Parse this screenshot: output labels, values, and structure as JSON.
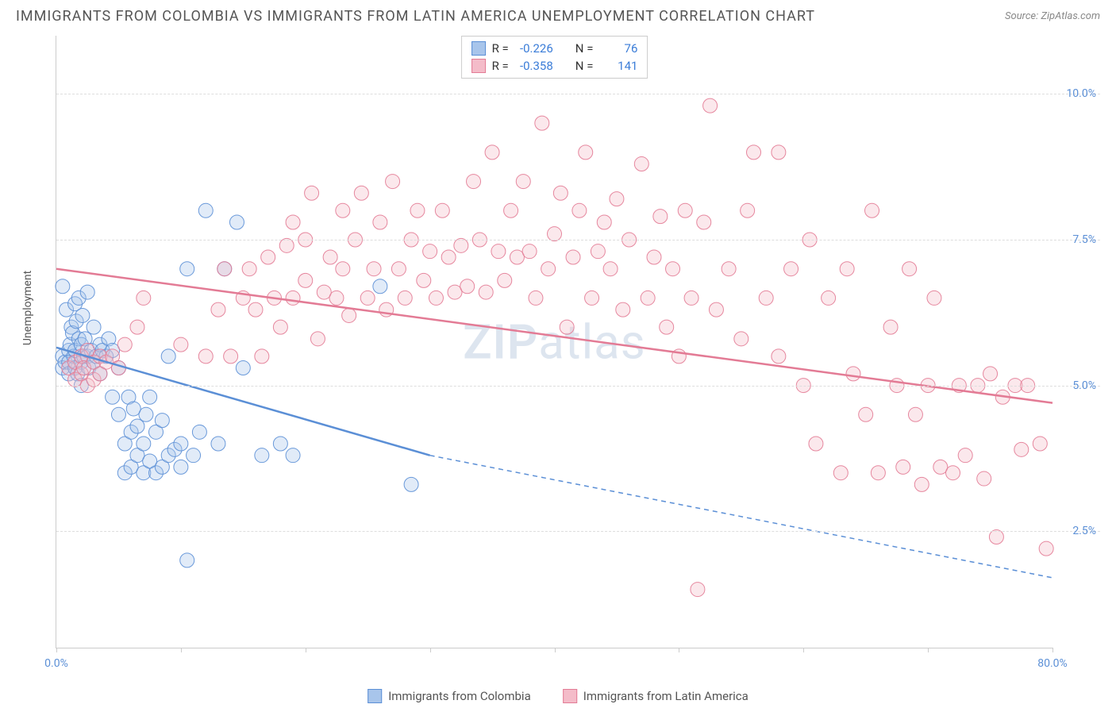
{
  "header": {
    "title": "IMMIGRANTS FROM COLOMBIA VS IMMIGRANTS FROM LATIN AMERICA UNEMPLOYMENT CORRELATION CHART",
    "source_prefix": "Source: ",
    "source_name": "ZipAtlas.com"
  },
  "chart": {
    "type": "scatter",
    "xlim": [
      0,
      80
    ],
    "ylim": [
      0.5,
      11
    ],
    "x_ticks": [
      0,
      10,
      20,
      30,
      40,
      50,
      60,
      70,
      80
    ],
    "x_tick_labels": {
      "0": "0.0%",
      "80": "80.0%"
    },
    "y_ticks": [
      2.5,
      5.0,
      7.5,
      10.0
    ],
    "y_tick_labels": [
      "2.5%",
      "5.0%",
      "7.5%",
      "10.0%"
    ],
    "y_axis_label": "Unemployment",
    "background_color": "#ffffff",
    "grid_color": "#dddddd",
    "axis_color": "#cccccc",
    "tick_label_color": "#5b8fd6",
    "marker_radius": 9,
    "marker_fill_opacity": 0.35,
    "marker_stroke_opacity": 0.9,
    "line_width": 2.5,
    "watermark": "ZIPatlas",
    "series": [
      {
        "name": "Immigrants from Colombia",
        "color": "#5b8fd6",
        "fill": "#a8c5eb",
        "R": "-0.226",
        "N": "76",
        "trend": {
          "x1": 0,
          "y1": 5.65,
          "x2": 30,
          "y2": 3.8,
          "x2_ext": 80,
          "y2_ext": 1.7
        },
        "points": [
          [
            0.5,
            6.7
          ],
          [
            0.5,
            5.5
          ],
          [
            0.5,
            5.3
          ],
          [
            0.7,
            5.4
          ],
          [
            0.8,
            6.3
          ],
          [
            1.0,
            5.6
          ],
          [
            1.0,
            5.4
          ],
          [
            1.0,
            5.2
          ],
          [
            1.1,
            5.7
          ],
          [
            1.2,
            6.0
          ],
          [
            1.3,
            5.9
          ],
          [
            1.4,
            5.5
          ],
          [
            1.5,
            6.4
          ],
          [
            1.5,
            5.3
          ],
          [
            1.5,
            5.6
          ],
          [
            1.6,
            6.1
          ],
          [
            1.7,
            5.2
          ],
          [
            1.8,
            5.8
          ],
          [
            1.8,
            6.5
          ],
          [
            2.0,
            5.4
          ],
          [
            2.0,
            5.0
          ],
          [
            2.0,
            5.7
          ],
          [
            2.1,
            6.2
          ],
          [
            2.2,
            5.5
          ],
          [
            2.3,
            5.8
          ],
          [
            2.5,
            5.5
          ],
          [
            2.5,
            6.6
          ],
          [
            2.6,
            5.3
          ],
          [
            2.8,
            5.6
          ],
          [
            3.0,
            5.4
          ],
          [
            3.0,
            6.0
          ],
          [
            3.2,
            5.5
          ],
          [
            3.5,
            5.7
          ],
          [
            3.5,
            5.2
          ],
          [
            3.7,
            5.6
          ],
          [
            4.0,
            5.5
          ],
          [
            4.2,
            5.8
          ],
          [
            4.5,
            4.8
          ],
          [
            4.5,
            5.6
          ],
          [
            5.0,
            5.3
          ],
          [
            5.0,
            4.5
          ],
          [
            5.5,
            4.0
          ],
          [
            5.5,
            3.5
          ],
          [
            5.8,
            4.8
          ],
          [
            6.0,
            4.2
          ],
          [
            6.0,
            3.6
          ],
          [
            6.2,
            4.6
          ],
          [
            6.5,
            3.8
          ],
          [
            6.5,
            4.3
          ],
          [
            7.0,
            4.0
          ],
          [
            7.0,
            3.5
          ],
          [
            7.2,
            4.5
          ],
          [
            7.5,
            3.7
          ],
          [
            7.5,
            4.8
          ],
          [
            8.0,
            3.5
          ],
          [
            8.0,
            4.2
          ],
          [
            8.5,
            3.6
          ],
          [
            8.5,
            4.4
          ],
          [
            9.0,
            3.8
          ],
          [
            9.0,
            5.5
          ],
          [
            9.5,
            3.9
          ],
          [
            10.0,
            4.0
          ],
          [
            10.0,
            3.6
          ],
          [
            10.5,
            7.0
          ],
          [
            11.0,
            3.8
          ],
          [
            11.5,
            4.2
          ],
          [
            12.0,
            8.0
          ],
          [
            13.0,
            4.0
          ],
          [
            13.5,
            7.0
          ],
          [
            14.5,
            7.8
          ],
          [
            15.0,
            5.3
          ],
          [
            16.5,
            3.8
          ],
          [
            18.0,
            4.0
          ],
          [
            19.0,
            3.8
          ],
          [
            26.0,
            6.7
          ],
          [
            28.5,
            3.3
          ],
          [
            10.5,
            2.0
          ]
        ]
      },
      {
        "name": "Immigrants from Latin America",
        "color": "#e37b95",
        "fill": "#f4bcc9",
        "R": "-0.358",
        "N": "141",
        "trend": {
          "x1": 0,
          "y1": 7.0,
          "x2": 80,
          "y2": 4.7,
          "x2_ext": 80,
          "y2_ext": 4.7
        },
        "points": [
          [
            1.0,
            5.3
          ],
          [
            1.5,
            5.4
          ],
          [
            1.5,
            5.1
          ],
          [
            2.0,
            5.5
          ],
          [
            2.0,
            5.2
          ],
          [
            2.2,
            5.3
          ],
          [
            2.5,
            5.6
          ],
          [
            2.5,
            5.0
          ],
          [
            3.0,
            5.4
          ],
          [
            3.0,
            5.1
          ],
          [
            3.5,
            5.5
          ],
          [
            3.5,
            5.2
          ],
          [
            4.0,
            5.4
          ],
          [
            4.5,
            5.5
          ],
          [
            5.0,
            5.3
          ],
          [
            5.5,
            5.7
          ],
          [
            6.5,
            6.0
          ],
          [
            7.0,
            6.5
          ],
          [
            10.0,
            5.7
          ],
          [
            12.0,
            5.5
          ],
          [
            13.0,
            6.3
          ],
          [
            13.5,
            7.0
          ],
          [
            14.0,
            5.5
          ],
          [
            15.0,
            6.5
          ],
          [
            15.5,
            7.0
          ],
          [
            16.0,
            6.3
          ],
          [
            16.5,
            5.5
          ],
          [
            17.0,
            7.2
          ],
          [
            17.5,
            6.5
          ],
          [
            18.0,
            6.0
          ],
          [
            18.5,
            7.4
          ],
          [
            19.0,
            6.5
          ],
          [
            19.0,
            7.8
          ],
          [
            20.0,
            6.8
          ],
          [
            20.0,
            7.5
          ],
          [
            20.5,
            8.3
          ],
          [
            21.0,
            5.8
          ],
          [
            21.5,
            6.6
          ],
          [
            22.0,
            7.2
          ],
          [
            22.5,
            6.5
          ],
          [
            23.0,
            7.0
          ],
          [
            23.0,
            8.0
          ],
          [
            23.5,
            6.2
          ],
          [
            24.0,
            7.5
          ],
          [
            24.5,
            8.3
          ],
          [
            25.0,
            6.5
          ],
          [
            25.5,
            7.0
          ],
          [
            26.0,
            7.8
          ],
          [
            26.5,
            6.3
          ],
          [
            27.0,
            8.5
          ],
          [
            27.5,
            7.0
          ],
          [
            28.0,
            6.5
          ],
          [
            28.5,
            7.5
          ],
          [
            29.0,
            8.0
          ],
          [
            29.5,
            6.8
          ],
          [
            30.0,
            7.3
          ],
          [
            30.5,
            6.5
          ],
          [
            31.0,
            8.0
          ],
          [
            31.5,
            7.2
          ],
          [
            32.0,
            6.6
          ],
          [
            32.5,
            7.4
          ],
          [
            33.0,
            6.7
          ],
          [
            33.5,
            8.5
          ],
          [
            34.0,
            7.5
          ],
          [
            34.5,
            6.6
          ],
          [
            35.0,
            9.0
          ],
          [
            35.5,
            7.3
          ],
          [
            36.0,
            6.8
          ],
          [
            36.5,
            8.0
          ],
          [
            37.0,
            7.2
          ],
          [
            37.5,
            8.5
          ],
          [
            38.0,
            7.3
          ],
          [
            38.5,
            6.5
          ],
          [
            39.0,
            9.5
          ],
          [
            39.5,
            7.0
          ],
          [
            40.0,
            7.6
          ],
          [
            40.5,
            8.3
          ],
          [
            41.0,
            6.0
          ],
          [
            41.5,
            7.2
          ],
          [
            42.0,
            8.0
          ],
          [
            42.5,
            9.0
          ],
          [
            43.0,
            6.5
          ],
          [
            43.5,
            7.3
          ],
          [
            44.0,
            7.8
          ],
          [
            44.5,
            7.0
          ],
          [
            45.0,
            8.2
          ],
          [
            45.5,
            6.3
          ],
          [
            46.0,
            7.5
          ],
          [
            47.0,
            8.8
          ],
          [
            47.5,
            6.5
          ],
          [
            48.0,
            7.2
          ],
          [
            48.5,
            7.9
          ],
          [
            49.0,
            6.0
          ],
          [
            49.5,
            7.0
          ],
          [
            50.0,
            5.5
          ],
          [
            50.5,
            8.0
          ],
          [
            51.0,
            6.5
          ],
          [
            52.0,
            7.8
          ],
          [
            52.5,
            9.8
          ],
          [
            53.0,
            6.3
          ],
          [
            54.0,
            7.0
          ],
          [
            55.0,
            5.8
          ],
          [
            55.5,
            8.0
          ],
          [
            56.0,
            9.0
          ],
          [
            57.0,
            6.5
          ],
          [
            58.0,
            5.5
          ],
          [
            58.0,
            9.0
          ],
          [
            59.0,
            7.0
          ],
          [
            60.0,
            5.0
          ],
          [
            60.5,
            7.5
          ],
          [
            61.0,
            4.0
          ],
          [
            62.0,
            6.5
          ],
          [
            63.0,
            3.5
          ],
          [
            63.5,
            7.0
          ],
          [
            64.0,
            5.2
          ],
          [
            65.0,
            4.5
          ],
          [
            65.5,
            8.0
          ],
          [
            66.0,
            3.5
          ],
          [
            67.0,
            6.0
          ],
          [
            67.5,
            5.0
          ],
          [
            68.0,
            3.6
          ],
          [
            68.5,
            7.0
          ],
          [
            69.0,
            4.5
          ],
          [
            69.5,
            3.3
          ],
          [
            70.0,
            5.0
          ],
          [
            70.5,
            6.5
          ],
          [
            71.0,
            3.6
          ],
          [
            72.0,
            3.5
          ],
          [
            72.5,
            5.0
          ],
          [
            73.0,
            3.8
          ],
          [
            74.0,
            5.0
          ],
          [
            74.5,
            3.4
          ],
          [
            75.0,
            5.2
          ],
          [
            75.5,
            2.4
          ],
          [
            76.0,
            4.8
          ],
          [
            77.0,
            5.0
          ],
          [
            77.5,
            3.9
          ],
          [
            78.0,
            5.0
          ],
          [
            79.0,
            4.0
          ],
          [
            79.5,
            2.2
          ],
          [
            51.5,
            1.5
          ]
        ]
      }
    ]
  },
  "legend_bottom": [
    {
      "label": "Immigrants from Colombia",
      "fill": "#a8c5eb",
      "stroke": "#5b8fd6"
    },
    {
      "label": "Immigrants from Latin America",
      "fill": "#f4bcc9",
      "stroke": "#e37b95"
    }
  ]
}
